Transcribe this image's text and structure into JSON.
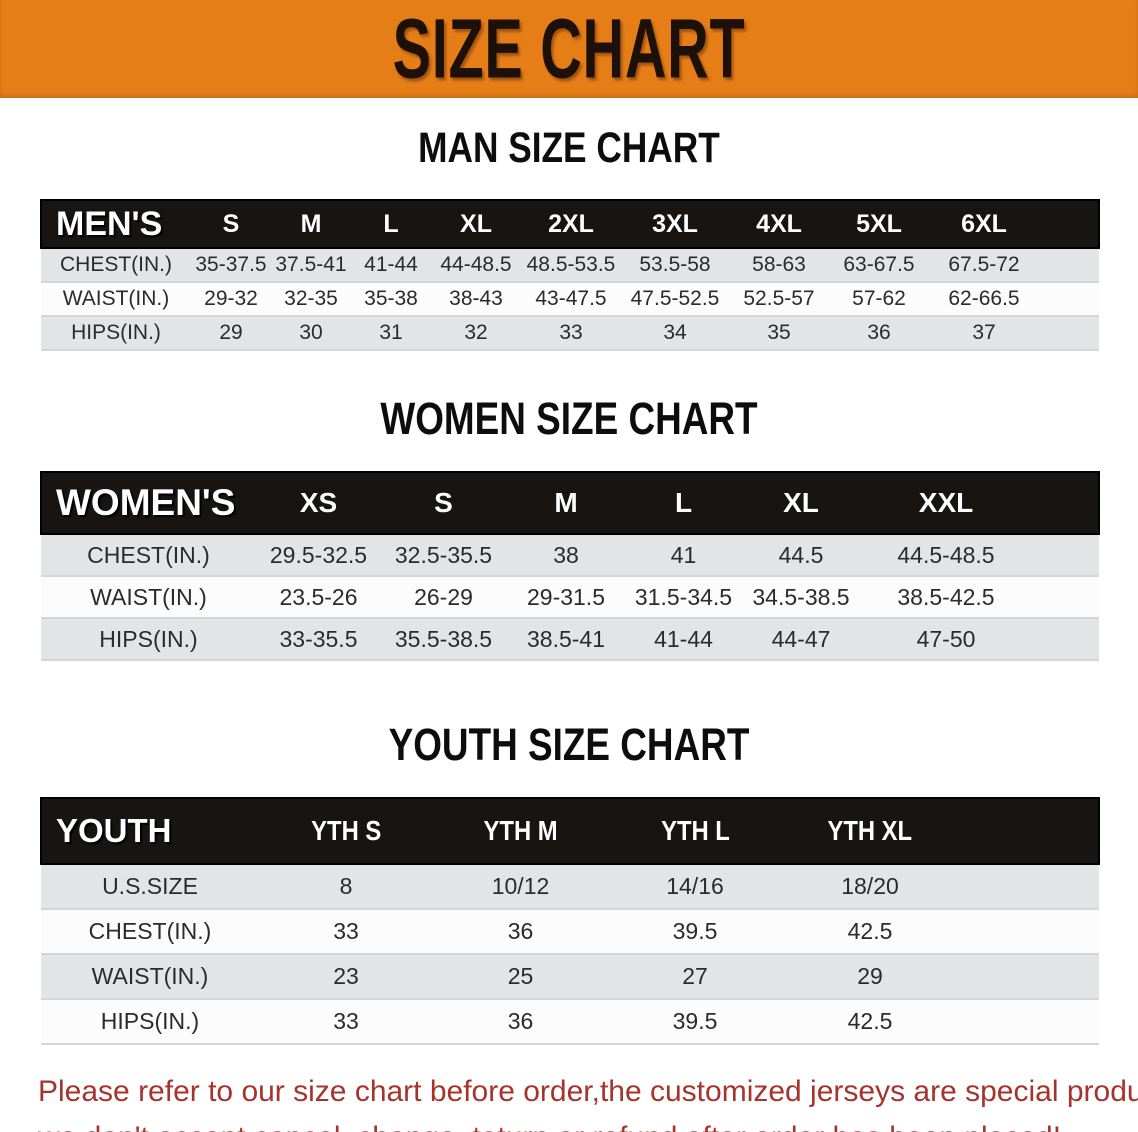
{
  "banner": {
    "title": "SIZE CHART"
  },
  "chart_data": [
    {
      "type": "table",
      "title": "MAN SIZE CHART",
      "band_label": "MEN'S",
      "columns": [
        "S",
        "M",
        "L",
        "XL",
        "2XL",
        "3XL",
        "4XL",
        "5XL",
        "6XL"
      ],
      "rows": [
        {
          "label": "CHEST(IN.)",
          "values": [
            "35-37.5",
            "37.5-41",
            "41-44",
            "44-48.5",
            "48.5-53.5",
            "53.5-58",
            "58-63",
            "63-67.5",
            "67.5-72"
          ]
        },
        {
          "label": "WAIST(IN.)",
          "values": [
            "29-32",
            "32-35",
            "35-38",
            "38-43",
            "43-47.5",
            "47.5-52.5",
            "52.5-57",
            "57-62",
            "62-66.5"
          ]
        },
        {
          "label": "HIPS(IN.)",
          "values": [
            "29",
            "30",
            "31",
            "32",
            "33",
            "34",
            "35",
            "36",
            "37"
          ]
        }
      ]
    },
    {
      "type": "table",
      "title": "WOMEN SIZE CHART",
      "band_label": "WOMEN'S",
      "columns": [
        "XS",
        "S",
        "M",
        "L",
        "XL",
        "XXL"
      ],
      "rows": [
        {
          "label": "CHEST(IN.)",
          "values": [
            "29.5-32.5",
            "32.5-35.5",
            "38",
            "41",
            "44.5",
            "44.5-48.5"
          ]
        },
        {
          "label": "WAIST(IN.)",
          "values": [
            "23.5-26",
            "26-29",
            "29-31.5",
            "31.5-34.5",
            "34.5-38.5",
            "38.5-42.5"
          ]
        },
        {
          "label": "HIPS(IN.)",
          "values": [
            "33-35.5",
            "35.5-38.5",
            "38.5-41",
            "41-44",
            "44-47",
            "47-50"
          ]
        }
      ]
    },
    {
      "type": "table",
      "title": "YOUTH SIZE CHART",
      "band_label": "YOUTH",
      "columns": [
        "YTH S",
        "YTH M",
        "YTH L",
        "YTH XL"
      ],
      "rows": [
        {
          "label": "U.S.SIZE",
          "values": [
            "8",
            "10/12",
            "14/16",
            "18/20"
          ]
        },
        {
          "label": "CHEST(IN.)",
          "values": [
            "33",
            "36",
            "39.5",
            "42.5"
          ]
        },
        {
          "label": "WAIST(IN.)",
          "values": [
            "23",
            "25",
            "27",
            "29"
          ]
        },
        {
          "label": "HIPS(IN.)",
          "values": [
            "33",
            "36",
            "39.5",
            "42.5"
          ]
        }
      ]
    }
  ],
  "footer": {
    "line1": "Please refer to our size chart before order,the customized jerseys are special products,",
    "line2": "we don't accept cancel, change, teturn or refund after order has been placed!"
  },
  "colors": {
    "banner_bg": "#e67e17",
    "banner_text": "#1c1008",
    "table_band_bg": "#171412",
    "table_band_text": "#ffffff",
    "row_gray": "#e3e4e6",
    "row_white": "#fcfcfc",
    "disclaimer_red": "#a6332c"
  }
}
